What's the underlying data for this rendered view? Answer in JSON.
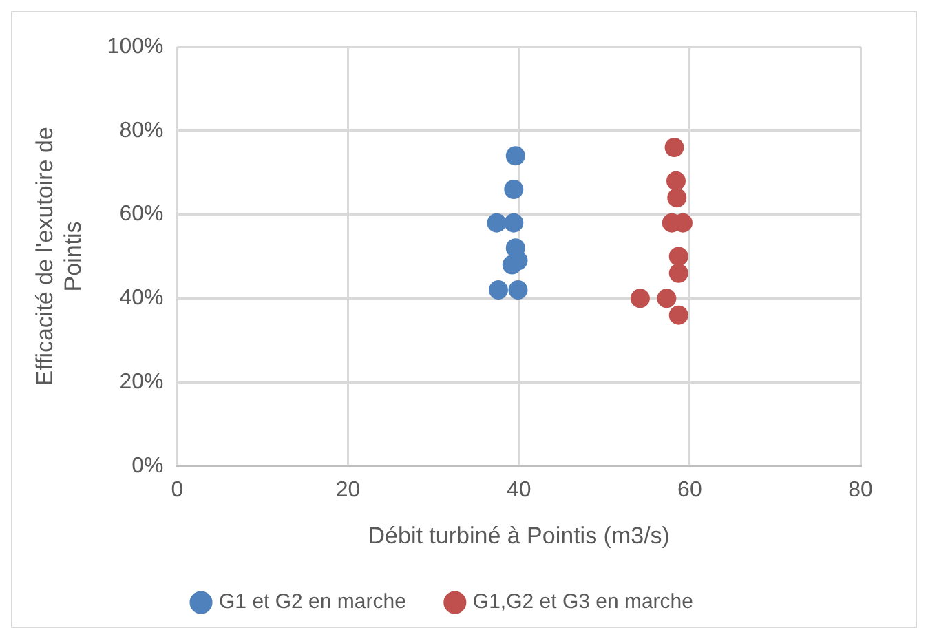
{
  "chart_data": {
    "type": "scatter",
    "xlabel": "Débit turbiné à Pointis (m3/s)",
    "ylabel": "Efficacité de l'exutoire de Pointis",
    "series": [
      {
        "name": "G1 et G2 en marche",
        "color": "#4f81bd",
        "x": [
          39.6,
          39.4,
          37.4,
          39.4,
          39.6,
          39.2,
          39.9,
          37.6,
          39.9
        ],
        "values": [
          74,
          66,
          58,
          58,
          52,
          48,
          49,
          42,
          42
        ]
      },
      {
        "name": "G1,G2 et G3 en marche",
        "color": "#c0504d",
        "x": [
          58.2,
          58.4,
          58.5,
          57.9,
          59.2,
          58.7,
          58.7,
          54.2,
          57.3,
          58.7
        ],
        "values": [
          76,
          68,
          64,
          58,
          58,
          50,
          46,
          40,
          40,
          36
        ]
      }
    ],
    "xlim": [
      0,
      80
    ],
    "xticks": [
      0,
      20,
      40,
      60,
      80
    ],
    "ylim": [
      0,
      100
    ],
    "yticks": [
      {
        "value": 0,
        "label": "0%"
      },
      {
        "value": 20,
        "label": "20%"
      },
      {
        "value": 40,
        "label": "40%"
      },
      {
        "value": 60,
        "label": "60%"
      },
      {
        "value": 80,
        "label": "80%"
      },
      {
        "value": 100,
        "label": "100%"
      }
    ],
    "grid": true,
    "legend": "bottom",
    "marker": "circle"
  }
}
